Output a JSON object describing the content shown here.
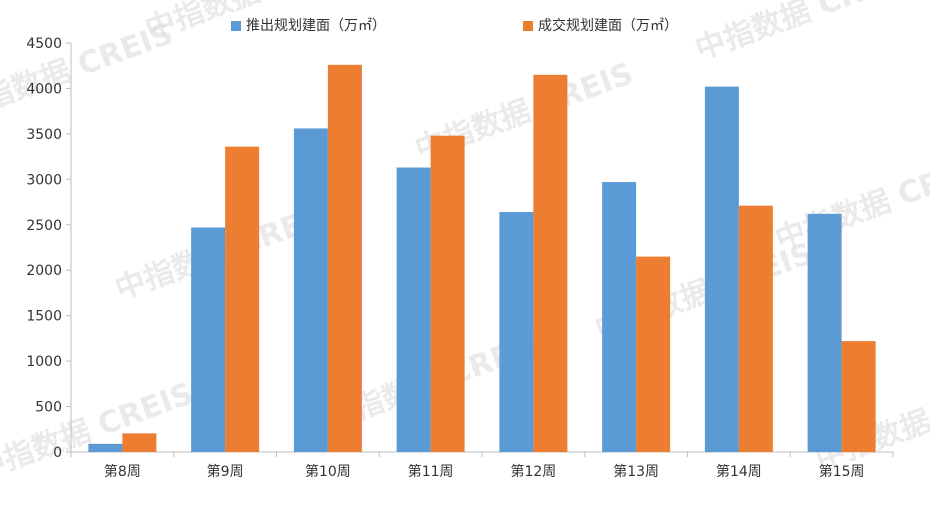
{
  "chart_data": {
    "type": "bar",
    "categories": [
      "第8周",
      "第9周",
      "第10周",
      "第11周",
      "第12周",
      "第13周",
      "第14周",
      "第15周"
    ],
    "series": [
      {
        "name": "推出规划建面（万㎡）",
        "color": "#5b9bd5",
        "values": [
          90,
          2470,
          3560,
          3130,
          2640,
          2970,
          4020,
          2620
        ]
      },
      {
        "name": "成交规划建面（万㎡）",
        "color": "#ed7d31",
        "values": [
          205,
          3360,
          4260,
          3480,
          4150,
          2150,
          2710,
          1220
        ]
      }
    ],
    "ylim": [
      0,
      4500
    ],
    "yticks": [
      0,
      500,
      1000,
      1500,
      2000,
      2500,
      3000,
      3500,
      4000,
      4500
    ],
    "legend_position": "top-center",
    "grid": false
  },
  "watermark": {
    "text": "中指数据 CREIS"
  }
}
